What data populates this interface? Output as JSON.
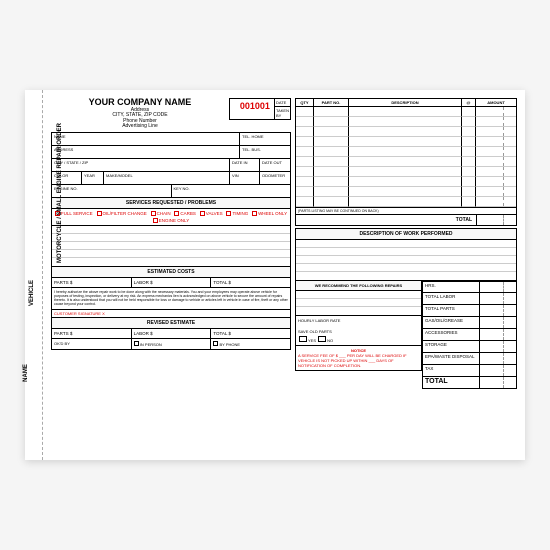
{
  "binding": {
    "name": "NAME",
    "vehicle": "VEHICLE",
    "title": "MOTORCYCLE / SMALL ENGINE REPAIR ORDER",
    "date": "DATE"
  },
  "header": {
    "company": "YOUR COMPANY NAME",
    "address": "Address",
    "csz": "CITY, STATE, ZIP CODE",
    "phone": "Phone Number",
    "adv": "Advertising Line",
    "order_no": "001001",
    "date_label": "DATE",
    "taken_by": "TAKEN BY"
  },
  "customer": {
    "name": "NAME",
    "tel_home": "TEL. HOME",
    "address": "ADDRESS",
    "tel_bus": "TEL. BUS.",
    "city": "CITY / STATE / ZIP",
    "date_in": "DATE IN",
    "date_out": "DATE OUT",
    "color": "COLOR",
    "year": "YEAR",
    "make": "MAKE/MODEL",
    "vin": "VIN",
    "odometer": "ODOMETER",
    "engine": "ENGINE NO.",
    "key": "KEY NO."
  },
  "services": {
    "title": "SERVICES REQUESTED / PROBLEMS",
    "opts": [
      "FULL SERVICE",
      "OIL/FILTER CHANGE",
      "CHAIN",
      "CARBS",
      "VALVES",
      "TIMING",
      "WHEEL ONLY",
      "ENGINE ONLY"
    ]
  },
  "estimate": {
    "title": "ESTIMATED COSTS",
    "parts": "PARTS $",
    "labor": "LABOR $",
    "total": "TOTAL $"
  },
  "disclaimer": "I hereby authorize the above repair work to be done along with the necessary materials. You and your employees may operate above vehicle for purposes of testing, inspection, or delivery at my risk. An express mechanics lien is acknowledged on above vehicle to secure the amount of repairs thereto. It is also understood that you will not be held responsible for loss or damage to vehicle or articles left in vehicle in case of fire, theft or any other cause beyond your control.",
  "signature": "CUSTOMER SIGNATURE X",
  "revised": {
    "title": "REVISED ESTIMATE",
    "okby": "OK'D BY",
    "in_person": "IN PERSON",
    "by_phone": "BY PHONE"
  },
  "okbox": {
    "hourly": "HOURLY LABOR RATE",
    "save": "SAVE OLD PARTS",
    "yes": "YES",
    "no": "NO",
    "hrs": "HRS."
  },
  "parts": {
    "headers": {
      "qty": "QTY",
      "partno": "PART NO.",
      "desc": "DESCRIPTION",
      "at": "@",
      "amount": "AMOUNT"
    },
    "note": "(PARTS LISTING MAY BE CONTINUED ON BACK)",
    "total": "TOTAL"
  },
  "work": {
    "title": "DESCRIPTION OF WORK PERFORMED",
    "recommend": "WE RECOMMEND THE FOLLOWING REPAIRS"
  },
  "summary": {
    "labels": [
      "TOTAL LABOR",
      "TOTAL PARTS",
      "GAS/OIL/GREASE",
      "ACCESSORIES",
      "STORAGE",
      "EPA/WASTE DISPOSAL",
      "TAX"
    ],
    "total": "TOTAL"
  },
  "notice": {
    "title": "NOTICE",
    "text": "A SERVICE FEE OF $ ___ PER DAY WILL BE CHARGED IF VEHICLE IS NOT PICKED UP WITHIN ___ DAYS OF NOTIFICATION OF COMPLETION."
  }
}
